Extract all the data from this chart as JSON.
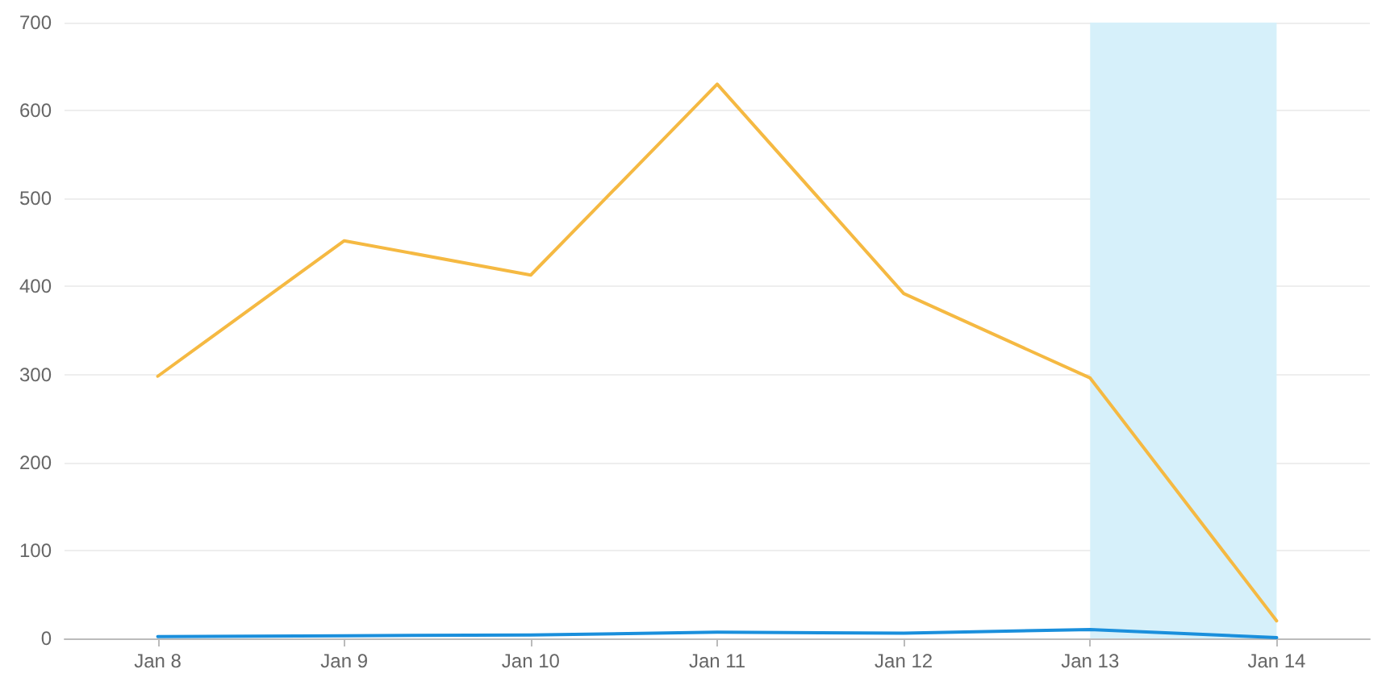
{
  "chart_data": {
    "type": "line",
    "categories": [
      "Jan 8",
      "Jan 9",
      "Jan 10",
      "Jan 11",
      "Jan 12",
      "Jan 13",
      "Jan 14"
    ],
    "series": [
      {
        "color": "#f5b942",
        "values": [
          298,
          452,
          413,
          630,
          392,
          296,
          20
        ]
      },
      {
        "color": "#1a8fdc",
        "values": [
          2,
          3,
          4,
          7,
          6,
          10,
          1
        ]
      }
    ],
    "ylim": [
      0,
      700
    ],
    "yticks": [
      0,
      100,
      200,
      300,
      400,
      500,
      600,
      700
    ],
    "grid": "y",
    "marker": "none",
    "line_style": "solid",
    "bands": [
      {
        "axis": "x",
        "from": "Jan 13",
        "to": "Jan 14",
        "color": "#d6f0fa"
      }
    ]
  }
}
